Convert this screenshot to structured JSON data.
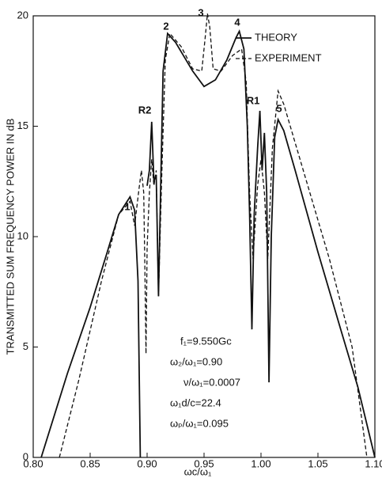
{
  "chart_data": {
    "type": "line",
    "ylabel": "TRANSMITTED SUM FREQUENCY POWER IN dB",
    "xlabel": "ωc/ω₁",
    "xlim": [
      0.8,
      1.1
    ],
    "xticks": [
      {
        "value": 0.8,
        "label": "0.80"
      },
      {
        "value": 0.85,
        "label": "0.85"
      },
      {
        "value": 0.9,
        "label": "0.90"
      },
      {
        "value": 0.95,
        "label": "0.95"
      },
      {
        "value": 1.0,
        "label": "1.00"
      },
      {
        "value": 1.05,
        "label": "1.05"
      },
      {
        "value": 1.1,
        "label": "1.10"
      }
    ],
    "ylim": [
      0,
      20
    ],
    "yticks": [
      0,
      5,
      10,
      15,
      20
    ],
    "grid": false,
    "legend": "upper right",
    "series": [
      {
        "name": "THEORY",
        "color": "#111111",
        "dash": false,
        "x": [
          0.807,
          0.83,
          0.85,
          0.865,
          0.875,
          0.885,
          0.889,
          0.892,
          0.894,
          0.897,
          0.9,
          0.902,
          0.904,
          0.906,
          0.908,
          0.91,
          0.912,
          0.914,
          0.918,
          0.925,
          0.94,
          0.95,
          0.96,
          0.97,
          0.978,
          0.981,
          0.985,
          0.988,
          0.99,
          0.992,
          0.994,
          0.997,
          0.999,
          1.001,
          1.003,
          1.005,
          1.007,
          1.009,
          1.012,
          1.015,
          1.02,
          1.03,
          1.05,
          1.07,
          1.085,
          1.1
        ],
        "values": [
          0,
          3.8,
          6.8,
          9.3,
          11,
          11.8,
          11.2,
          8,
          0,
          null,
          12.3,
          13,
          15.2,
          12.5,
          12.8,
          7.3,
          12.5,
          17.5,
          19.2,
          18.8,
          17.5,
          16.8,
          17.1,
          18,
          19,
          19.3,
          18.5,
          15,
          11,
          5.8,
          11,
          14,
          15.7,
          13,
          14.7,
          12,
          3.4,
          10,
          14.5,
          15.3,
          14.8,
          13,
          9.3,
          5.8,
          3.2,
          0
        ]
      },
      {
        "name": "EXPERIMENT",
        "color": "#111111",
        "dash": true,
        "x": [
          0.823,
          0.84,
          0.86,
          0.875,
          0.885,
          0.889,
          0.893,
          0.895,
          0.897,
          0.898,
          0.899,
          0.9,
          0.902,
          0.904,
          0.906,
          0.908,
          0.91,
          0.913,
          0.916,
          0.92,
          0.93,
          0.94,
          0.948,
          0.951,
          0.953,
          0.955,
          0.958,
          0.965,
          0.975,
          0.983,
          0.987,
          0.99,
          0.993,
          0.997,
          1.0,
          1.003,
          1.006,
          1.01,
          1.015,
          1.02,
          1.04,
          1.06,
          1.08,
          1.093
        ],
        "values": [
          0,
          3.5,
          8,
          11,
          11.6,
          10.5,
          12.2,
          13,
          12,
          8.8,
          4.7,
          9.5,
          12,
          13.5,
          12.3,
          13,
          7.3,
          13,
          18,
          19.2,
          18.6,
          17.6,
          17.5,
          19,
          20.1,
          19.5,
          17.6,
          17.5,
          18.2,
          18.5,
          17,
          12,
          9,
          12.3,
          13.5,
          12,
          9,
          14,
          16.6,
          16,
          12.5,
          9,
          5,
          0
        ]
      }
    ],
    "peak_labels": [
      "1",
      "2",
      "3",
      "4",
      "5",
      "R1",
      "R2"
    ],
    "parameters": [
      "f₁=9.550Gc",
      "ω₂/ω₁=0.90",
      "ν/ω₁=0.0007",
      "ω₁d/c=22.4",
      "ωₚ/ω₁=0.095"
    ]
  }
}
